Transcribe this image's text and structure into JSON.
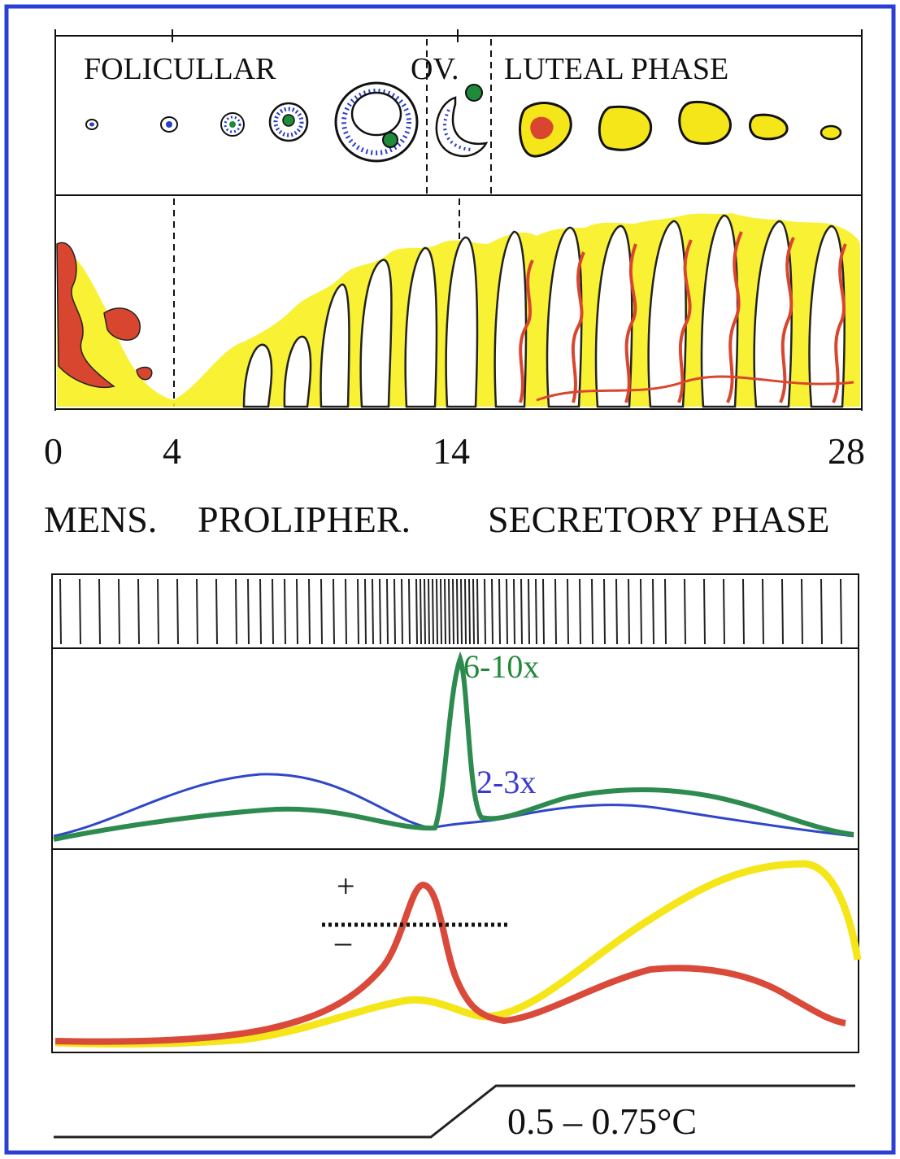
{
  "top_panel": {
    "follicular_label": "FOLICULLAR",
    "ovulation_label": "OV.",
    "luteal_label": "LUTEAL PHASE"
  },
  "day_axis": {
    "ticks": [
      "0",
      "4",
      "14",
      "28"
    ]
  },
  "endometrium_phases": {
    "menstrual": "MENS.",
    "proliferative": "PROLIPHER.",
    "secretory": "SECRETORY PHASE"
  },
  "gonadotropins": {
    "lh_peak_label": "6-10x",
    "fsh_peak_label": "2-3x",
    "lh_color": "#2e8b4f",
    "fsh_color": "#2f47c8"
  },
  "steroids": {
    "plus_label": "+",
    "minus_label": "–",
    "estradiol_color": "#d94a3a",
    "progesterone_color": "#f5e61a"
  },
  "temperature": {
    "rise_label": "0.5 – 0.75°C"
  },
  "colors": {
    "frame": "#2b3fd4",
    "tissue_yellow": "#f7ef10",
    "vessel_red": "#d9462f",
    "oocyte_green": "#1f8a3a",
    "granulosa_blue": "#2a3fc7"
  }
}
